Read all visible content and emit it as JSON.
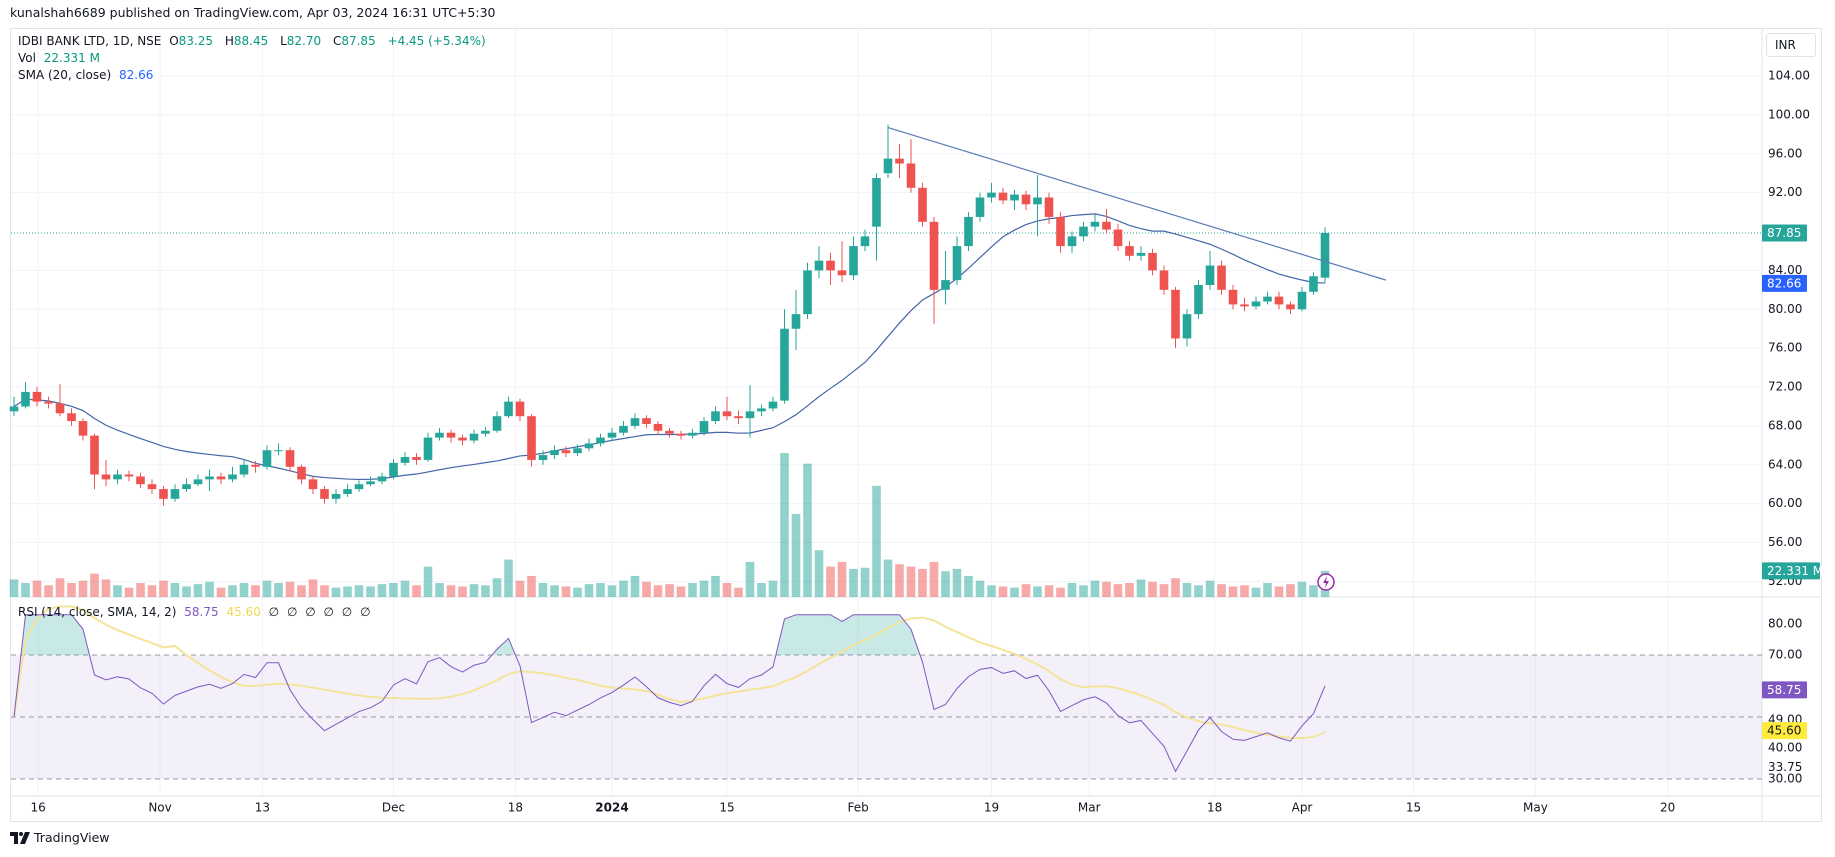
{
  "header": {
    "published": "kunalshah6689 published on TradingView.com, Apr 03, 2024 16:31 UTC+5:30"
  },
  "legend": {
    "symbol": "IDBI BANK LTD, 1D, NSE",
    "o_label": "O",
    "o": "83.25",
    "h_label": "H",
    "h": "88.45",
    "l_label": "L",
    "l": "82.70",
    "c_label": "C",
    "c": "87.85",
    "change": "+4.45 (+5.34%)",
    "vol_label": "Vol",
    "vol": "22.331 M",
    "sma_label": "SMA (20, close)",
    "sma": "82.66",
    "rsi_label": "RSI (14, close, SMA, 14, 2)",
    "rsi": "58.75",
    "rsi_sma": "45.60",
    "rsi_extra": [
      "∅",
      "∅",
      "∅",
      "∅",
      "∅",
      "∅"
    ]
  },
  "currency": "INR",
  "branding": {
    "logo_text": "TradingView"
  },
  "colors": {
    "up": "#26a69a",
    "down": "#ef5350",
    "sma": "#4565a8",
    "rsi": "#7e57c2",
    "rsi_sma": "#f3e49a",
    "last_price": "#26a69a",
    "sma_label": "#2962ff",
    "trendline": "#5b7bb5"
  },
  "chart_data": {
    "type": "candlestick",
    "title": "IDBI BANK LTD, 1D, NSE",
    "price_axis": {
      "ticks": [
        "104.00",
        "100.00",
        "96.00",
        "92.00",
        "84.00",
        "80.00",
        "76.00",
        "72.00",
        "68.00",
        "64.00",
        "60.00",
        "56.00",
        "52.00"
      ],
      "range": [
        52,
        104
      ]
    },
    "price_labels": {
      "last": "87.85",
      "sma": "82.66",
      "volume": "22.331 M"
    },
    "time_axis": [
      {
        "label": "16",
        "bar": 2.1
      },
      {
        "label": "Nov",
        "bar": 12.7
      },
      {
        "label": "13",
        "bar": 21.6
      },
      {
        "label": "Dec",
        "bar": 33
      },
      {
        "label": "18",
        "bar": 43.6
      },
      {
        "label": "2024",
        "bar": 52,
        "bold": true
      },
      {
        "label": "15",
        "bar": 62
      },
      {
        "label": "Feb",
        "bar": 73.4
      },
      {
        "label": "19",
        "bar": 85
      },
      {
        "label": "Mar",
        "bar": 93.5
      },
      {
        "label": "18",
        "bar": 104.4
      },
      {
        "label": "Apr",
        "bar": 112
      },
      {
        "label": "15",
        "bar": 121.7
      },
      {
        "label": "May",
        "bar": 132.3
      },
      {
        "label": "20",
        "bar": 143.8
      }
    ],
    "open": [
      69.5,
      70,
      71.5,
      70.5,
      70.3,
      69.3,
      68.5,
      67,
      63,
      62.5,
      63,
      62.8,
      62,
      61.5,
      60.5,
      61.5,
      62,
      62.5,
      62.8,
      62.5,
      63,
      64,
      63.8,
      65.5,
      65.5,
      63.8,
      62.5,
      61.5,
      60.5,
      61,
      61.5,
      62,
      62.3,
      62.8,
      64.2,
      64.8,
      64.5,
      66.8,
      67.3,
      66.8,
      66.5,
      67.2,
      67.5,
      69,
      70.5,
      69,
      64.5,
      65,
      65.5,
      65.2,
      65.7,
      66.2,
      66.8,
      67.3,
      68,
      68.8,
      68.2,
      67.5,
      67.2,
      67,
      67.3,
      68.5,
      69.5,
      69,
      68.8,
      69.5,
      69.8,
      70.6,
      78,
      79.5,
      84,
      85,
      84,
      83.5,
      86.5,
      88.5,
      94,
      95.5,
      95,
      92.5,
      89,
      82,
      83,
      86.5,
      89.5,
      91.5,
      92,
      91.2,
      91.8,
      90.8,
      91.5,
      89.5,
      86.5,
      87.5,
      88.5,
      89,
      88.2,
      86.5,
      85.5,
      85.8,
      84,
      82,
      77,
      79.5,
      82.5,
      84.5,
      82,
      80.5,
      80.3,
      80.8,
      81.3,
      80.5,
      80,
      81.8,
      83.25
    ],
    "high": [
      71,
      72.5,
      72,
      71,
      72.3,
      69.8,
      68.8,
      67.2,
      64.5,
      63.5,
      63.4,
      63.2,
      62.5,
      61.8,
      62,
      62.6,
      63,
      63.5,
      63.2,
      63.8,
      64.6,
      64.4,
      66,
      66.2,
      65.8,
      64,
      62.8,
      61.8,
      61.5,
      62,
      62.4,
      62.8,
      63.2,
      64.6,
      65.3,
      65.2,
      67.3,
      67.8,
      67.6,
      67.1,
      67.6,
      67.9,
      69.5,
      71,
      70.8,
      69.2,
      65.5,
      66,
      65.9,
      66.1,
      66.7,
      67.2,
      67.8,
      68.5,
      69.3,
      69.1,
      68.5,
      67.8,
      67.5,
      67.7,
      68.9,
      70,
      71,
      69.6,
      72.2,
      70.2,
      71,
      80,
      82,
      84.8,
      86.5,
      85.8,
      87,
      87.5,
      88.2,
      94,
      99,
      97,
      97.5,
      93,
      89.5,
      86,
      87.5,
      90,
      92,
      93,
      92.5,
      92.3,
      92.2,
      93.8,
      92,
      90,
      88,
      89,
      89.8,
      90.3,
      88.8,
      87,
      86.5,
      86.2,
      84.5,
      82.3,
      80,
      83,
      86,
      85,
      82.5,
      81.2,
      81.3,
      81.8,
      81.8,
      80.8,
      82.3,
      83.8,
      88.45
    ],
    "low": [
      69,
      69.8,
      70,
      69.8,
      69,
      68,
      66.5,
      61.5,
      61.8,
      62,
      62.3,
      61.6,
      61,
      59.8,
      60.2,
      61.2,
      61.8,
      61.3,
      62,
      62.2,
      62.7,
      63.2,
      63.5,
      65,
      63.3,
      62,
      61,
      60,
      60,
      60.7,
      61.2,
      61.8,
      62,
      62.5,
      63.9,
      64,
      64.3,
      66.5,
      66.3,
      66,
      66.2,
      66.9,
      67.3,
      68.8,
      68.5,
      63.8,
      64,
      64.6,
      64.8,
      64.9,
      65.4,
      65.9,
      66.5,
      67,
      67.7,
      67.8,
      67.1,
      66.8,
      66.6,
      66.7,
      67,
      68.2,
      68.6,
      68.2,
      66.8,
      69,
      69.5,
      70.3,
      75.8,
      79,
      83.2,
      82.5,
      82.8,
      83,
      86,
      85,
      93.5,
      93.5,
      92,
      88.5,
      78.5,
      80.5,
      82.5,
      86,
      89,
      91,
      90.8,
      90.2,
      90.2,
      87.5,
      88.8,
      85.8,
      85.8,
      87,
      88,
      87.8,
      86,
      85,
      85,
      83.5,
      81.5,
      76,
      76.2,
      79,
      82,
      81.5,
      80,
      79.8,
      80,
      80.5,
      80,
      79.5,
      79.8,
      81.5,
      82.7
    ],
    "close": [
      70,
      71.5,
      70.5,
      70.3,
      69.3,
      68.5,
      67,
      63,
      62.5,
      63,
      62.8,
      62,
      61.5,
      60.5,
      61.5,
      62,
      62.5,
      62.8,
      62.5,
      63,
      64,
      63.8,
      65.5,
      65.5,
      63.8,
      62.5,
      61.5,
      60.5,
      61,
      61.5,
      62,
      62.3,
      62.8,
      64.2,
      64.8,
      64.5,
      66.8,
      67.3,
      66.8,
      66.5,
      67.2,
      67.5,
      69,
      70.5,
      69,
      64.5,
      65,
      65.5,
      65.2,
      65.7,
      66.2,
      66.8,
      67.3,
      68,
      68.8,
      68.2,
      67.5,
      67.2,
      67,
      67.3,
      68.5,
      69.5,
      69,
      68.8,
      69.5,
      69.8,
      70.5,
      78,
      79.5,
      84,
      85,
      84,
      83.5,
      86.5,
      87.5,
      93.5,
      95.5,
      95,
      92.5,
      89,
      82,
      83,
      86.5,
      89.5,
      91.5,
      92,
      91.2,
      91.8,
      90.8,
      91.5,
      89.5,
      86.5,
      87.5,
      88.5,
      89,
      88.2,
      86.5,
      85.5,
      85.8,
      84,
      82,
      77,
      79.5,
      82.5,
      84.5,
      82,
      80.5,
      80.3,
      80.8,
      81.3,
      80.5,
      80,
      81.8,
      83.4,
      87.85
    ],
    "volume_millions": [
      15,
      12,
      14,
      10,
      16,
      12,
      14,
      20,
      15,
      10,
      8,
      12,
      10,
      14,
      12,
      9,
      11,
      13,
      8,
      10,
      12,
      10,
      14,
      12,
      13,
      10,
      15,
      10,
      8,
      9,
      10,
      9,
      11,
      12,
      14,
      10,
      26,
      12,
      10,
      9,
      11,
      10,
      16,
      32,
      14,
      18,
      12,
      10,
      9,
      8,
      11,
      12,
      10,
      14,
      18,
      13,
      10,
      11,
      9,
      12,
      14,
      18,
      12,
      8,
      30,
      12,
      14,
      123,
      71,
      114,
      40,
      26,
      30,
      24,
      25,
      95,
      32,
      28,
      26,
      24,
      30,
      22,
      24,
      18,
      14,
      10,
      9,
      8,
      11,
      9,
      10,
      8,
      12,
      10,
      14,
      13,
      11,
      12,
      15,
      13,
      11,
      16,
      12,
      10,
      14,
      11,
      9,
      10,
      8,
      12,
      9,
      11,
      13,
      10,
      22.331
    ],
    "sma_period": 20,
    "trendline": [
      {
        "bar": 76,
        "price": 98.7
      },
      {
        "bar": 119.3,
        "price": 83.0
      }
    ],
    "rsi": {
      "period": 14,
      "sma_period": 14,
      "axis_ticks": [
        "80.00",
        "70.00",
        "49.00",
        "40.00",
        "33.75",
        "30.00"
      ],
      "axis_values": [
        80,
        70,
        49,
        40,
        33.75,
        30
      ],
      "bands": [
        70,
        50,
        30
      ],
      "last": "58.75",
      "last_sma": "45.60"
    }
  }
}
